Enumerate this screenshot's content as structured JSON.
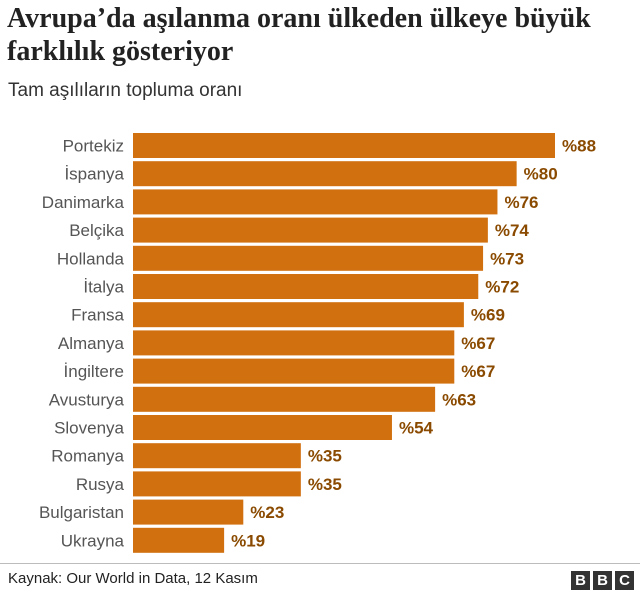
{
  "header": {
    "title": "Avrupa’da aşılanma oranı ülkeden ülkeye büyük farklılık gösteriyor",
    "subtitle": "Tam aşılıların topluma oranı"
  },
  "footer": {
    "source": "Kaynak: Our World in Data, 12 Kasım",
    "logo_letters": [
      "B",
      "B",
      "C"
    ]
  },
  "colors": {
    "bar": "#d1700e",
    "value_label": "#8a4a00",
    "category_label": "#555555"
  },
  "chart_data": {
    "type": "bar",
    "orientation": "horizontal",
    "categories": [
      "Portekiz",
      "İspanya",
      "Danimarka",
      "Belçika",
      "Hollanda",
      "İtalya",
      "Fransa",
      "Almanya",
      "İngiltere",
      "Avusturya",
      "Slovenya",
      "Romanya",
      "Rusya",
      "Bulgaristan",
      "Ukrayna"
    ],
    "values": [
      88,
      80,
      76,
      74,
      73,
      72,
      69,
      67,
      67,
      63,
      54,
      35,
      35,
      23,
      19
    ],
    "value_labels": [
      "%88",
      "%80",
      "%76",
      "%74",
      "%73",
      "%72",
      "%69",
      "%67",
      "%67",
      "%63",
      "%54",
      "%35",
      "%35",
      "%23",
      "%19"
    ],
    "xlim": [
      0,
      88
    ],
    "grid": false,
    "legend": "none"
  }
}
